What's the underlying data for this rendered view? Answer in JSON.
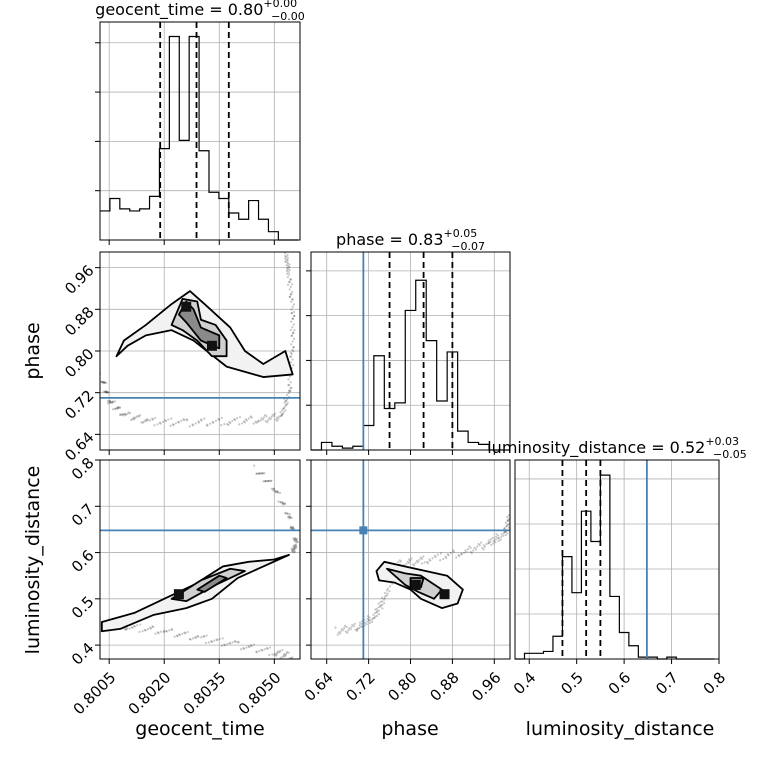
{
  "chart_data": {
    "type": "corner",
    "parameters": [
      "geocent_time",
      "phase",
      "luminosity_distance"
    ],
    "truths": {
      "phase": 0.71,
      "luminosity_distance": 0.648
    },
    "truth_color": "#4682b4",
    "grid": true,
    "diagonals": [
      {
        "param": "geocent_time",
        "title": "geocent_time = 0.80",
        "title_sup": "+0.00",
        "title_sub": "−0.00",
        "xlim": [
          0.80025,
          0.8057
        ],
        "bins": [
          0.80025,
          0.80052,
          0.80079,
          0.80106,
          0.80133,
          0.8016,
          0.80187,
          0.80214,
          0.80241,
          0.80268,
          0.80295,
          0.80322,
          0.80349,
          0.80376,
          0.80403,
          0.8043,
          0.80457,
          0.80484,
          0.80511,
          0.80538,
          0.80565
        ],
        "counts": [
          0.14,
          0.2,
          0.15,
          0.14,
          0.15,
          0.21,
          0.44,
          0.98,
          0.48,
          0.98,
          0.43,
          0.23,
          0.2,
          0.13,
          0.1,
          0.19,
          0.1,
          0.04,
          0.0,
          0.0
        ],
        "quantiles": [
          0.80189,
          0.80288,
          0.80376
        ]
      },
      {
        "param": "phase",
        "title": "phase = 0.83",
        "title_sup": "+0.05",
        "title_sub": "−0.07",
        "xlim": [
          0.61,
          0.99
        ],
        "bins": [
          0.61,
          0.63,
          0.65,
          0.67,
          0.69,
          0.71,
          0.73,
          0.75,
          0.77,
          0.79,
          0.81,
          0.83,
          0.85,
          0.87,
          0.89,
          0.91,
          0.93,
          0.95,
          0.97,
          0.99
        ],
        "counts": [
          0.0,
          0.04,
          0.02,
          0.01,
          0.02,
          0.13,
          0.5,
          0.22,
          0.25,
          0.74,
          0.9,
          0.58,
          0.26,
          0.52,
          0.1,
          0.04,
          0.03,
          0.0,
          0.0
        ],
        "quantiles": [
          0.76,
          0.825,
          0.88
        ]
      },
      {
        "param": "luminosity_distance",
        "title": "luminosity_distance = 0.52",
        "title_sup": "+0.03",
        "title_sub": "−0.05",
        "xlim": [
          0.37,
          0.8
        ],
        "bins": [
          0.37,
          0.39,
          0.41,
          0.43,
          0.45,
          0.47,
          0.49,
          0.51,
          0.53,
          0.55,
          0.57,
          0.59,
          0.61,
          0.63,
          0.65,
          0.67,
          0.69,
          0.71,
          0.73,
          0.75,
          0.77,
          0.79
        ],
        "counts": [
          0.0,
          0.03,
          0.03,
          0.04,
          0.12,
          0.54,
          0.35,
          0.78,
          0.62,
          0.97,
          0.33,
          0.14,
          0.07,
          0.01,
          0.01,
          0.0,
          0.01,
          0.0,
          0.0,
          0.0,
          0.0
        ],
        "quantiles": [
          0.47,
          0.52,
          0.55
        ]
      }
    ],
    "panels_2d": [
      {
        "x": "geocent_time",
        "y": "phase",
        "xlim": [
          0.80025,
          0.8057
        ],
        "ylim": [
          0.61,
          0.99
        ],
        "peaks": [
          [
            0.8026,
            0.885
          ],
          [
            0.8033,
            0.81
          ]
        ],
        "contours": [
          [
            [
              0.8007,
              0.79
            ],
            [
              0.8009,
              0.82
            ],
            [
              0.8015,
              0.85
            ],
            [
              0.8022,
              0.89
            ],
            [
              0.8027,
              0.915
            ],
            [
              0.8031,
              0.89
            ],
            [
              0.8038,
              0.845
            ],
            [
              0.8042,
              0.8
            ],
            [
              0.8047,
              0.775
            ],
            [
              0.8053,
              0.8
            ],
            [
              0.8055,
              0.755
            ],
            [
              0.8047,
              0.75
            ],
            [
              0.8037,
              0.77
            ],
            [
              0.8028,
              0.82
            ],
            [
              0.8022,
              0.84
            ],
            [
              0.8015,
              0.83
            ],
            [
              0.801,
              0.81
            ]
          ],
          [
            [
              0.8022,
              0.85
            ],
            [
              0.8025,
              0.9
            ],
            [
              0.8029,
              0.895
            ],
            [
              0.803,
              0.86
            ],
            [
              0.8034,
              0.85
            ],
            [
              0.8037,
              0.82
            ],
            [
              0.8037,
              0.79
            ],
            [
              0.8033,
              0.79
            ],
            [
              0.8029,
              0.82
            ],
            [
              0.8025,
              0.84
            ]
          ],
          [
            [
              0.8024,
              0.87
            ],
            [
              0.8026,
              0.895
            ],
            [
              0.8028,
              0.88
            ],
            [
              0.803,
              0.845
            ],
            [
              0.8035,
              0.83
            ],
            [
              0.8035,
              0.805
            ],
            [
              0.803,
              0.82
            ],
            [
              0.8026,
              0.855
            ]
          ]
        ],
        "trail": [
          [
            0.8003,
            0.75
          ],
          [
            0.8005,
            0.705
          ],
          [
            0.8009,
            0.678
          ],
          [
            0.8016,
            0.665
          ],
          [
            0.8026,
            0.662
          ],
          [
            0.8037,
            0.665
          ],
          [
            0.8046,
            0.668
          ],
          [
            0.8052,
            0.675
          ],
          [
            0.8054,
            0.72
          ],
          [
            0.8055,
            0.8
          ],
          [
            0.8055,
            0.88
          ],
          [
            0.8054,
            0.95
          ],
          [
            0.8053,
            0.99
          ]
        ]
      },
      {
        "x": "geocent_time",
        "y": "luminosity_distance",
        "xlim": [
          0.80025,
          0.8057
        ],
        "ylim": [
          0.37,
          0.8
        ],
        "peaks": [
          [
            0.8024,
            0.51
          ]
        ],
        "contours": [
          [
            [
              0.8003,
              0.45
            ],
            [
              0.8012,
              0.47
            ],
            [
              0.802,
              0.5
            ],
            [
              0.8028,
              0.53
            ],
            [
              0.8036,
              0.57
            ],
            [
              0.8043,
              0.58
            ],
            [
              0.805,
              0.585
            ],
            [
              0.8054,
              0.595
            ],
            [
              0.8047,
              0.57
            ],
            [
              0.804,
              0.545
            ],
            [
              0.8033,
              0.5
            ],
            [
              0.8026,
              0.48
            ],
            [
              0.8017,
              0.465
            ],
            [
              0.8008,
              0.435
            ],
            [
              0.8003,
              0.43
            ]
          ],
          [
            [
              0.8022,
              0.5
            ],
            [
              0.803,
              0.54
            ],
            [
              0.8038,
              0.565
            ],
            [
              0.8042,
              0.56
            ],
            [
              0.8034,
              0.53
            ],
            [
              0.8026,
              0.495
            ]
          ],
          [
            [
              0.8029,
              0.52
            ],
            [
              0.8035,
              0.55
            ],
            [
              0.8037,
              0.545
            ],
            [
              0.8031,
              0.515
            ]
          ]
        ],
        "trail": [
          [
            0.8003,
            0.45
          ],
          [
            0.801,
            0.44
          ],
          [
            0.802,
            0.43
          ],
          [
            0.803,
            0.415
          ],
          [
            0.804,
            0.4
          ],
          [
            0.805,
            0.385
          ],
          [
            0.8055,
            0.375
          ]
        ],
        "trail2": [
          [
            0.8045,
            0.78
          ],
          [
            0.805,
            0.74
          ],
          [
            0.8054,
            0.68
          ],
          [
            0.8056,
            0.62
          ],
          [
            0.8055,
            0.6
          ]
        ]
      },
      {
        "x": "phase",
        "y": "luminosity_distance",
        "xlim": [
          0.61,
          0.99
        ],
        "ylim": [
          0.37,
          0.8
        ],
        "peaks": [
          [
            0.81,
            0.53
          ],
          [
            0.865,
            0.51
          ]
        ],
        "contours": [
          [
            [
              0.735,
              0.56
            ],
            [
              0.75,
              0.58
            ],
            [
              0.79,
              0.57
            ],
            [
              0.83,
              0.56
            ],
            [
              0.87,
              0.55
            ],
            [
              0.9,
              0.52
            ],
            [
              0.89,
              0.49
            ],
            [
              0.86,
              0.48
            ],
            [
              0.82,
              0.5
            ],
            [
              0.8,
              0.52
            ],
            [
              0.77,
              0.535
            ],
            [
              0.74,
              0.54
            ]
          ],
          [
            [
              0.755,
              0.565
            ],
            [
              0.79,
              0.555
            ],
            [
              0.82,
              0.55
            ],
            [
              0.86,
              0.52
            ],
            [
              0.845,
              0.5
            ],
            [
              0.815,
              0.515
            ],
            [
              0.79,
              0.53
            ]
          ],
          [
            [
              0.8,
              0.545
            ],
            [
              0.825,
              0.545
            ],
            [
              0.82,
              0.525
            ],
            [
              0.8,
              0.525
            ]
          ]
        ],
        "trail": [
          [
            0.66,
            0.43
          ],
          [
            0.7,
            0.44
          ],
          [
            0.73,
            0.46
          ],
          [
            0.75,
            0.5
          ],
          [
            0.78,
            0.575
          ],
          [
            0.83,
            0.585
          ],
          [
            0.9,
            0.6
          ],
          [
            0.95,
            0.62
          ],
          [
            0.98,
            0.64
          ],
          [
            0.99,
            0.68
          ]
        ]
      }
    ],
    "xticks": {
      "geocent_time": [
        "0.8005",
        "0.8020",
        "0.8035",
        "0.8050"
      ],
      "phase": [
        "0.64",
        "0.72",
        "0.80",
        "0.88",
        "0.96"
      ],
      "luminosity_distance": [
        "0.4",
        "0.5",
        "0.6",
        "0.7",
        "0.8"
      ]
    },
    "yticks": {
      "phase": [
        "0.64",
        "0.72",
        "0.80",
        "0.88",
        "0.96"
      ],
      "luminosity_distance": [
        "0.4",
        "0.5",
        "0.6",
        "0.7",
        "0.8"
      ]
    },
    "xlabels": [
      "geocent_time",
      "phase",
      "luminosity_distance"
    ],
    "ylabels": [
      "phase",
      "luminosity_distance"
    ]
  }
}
